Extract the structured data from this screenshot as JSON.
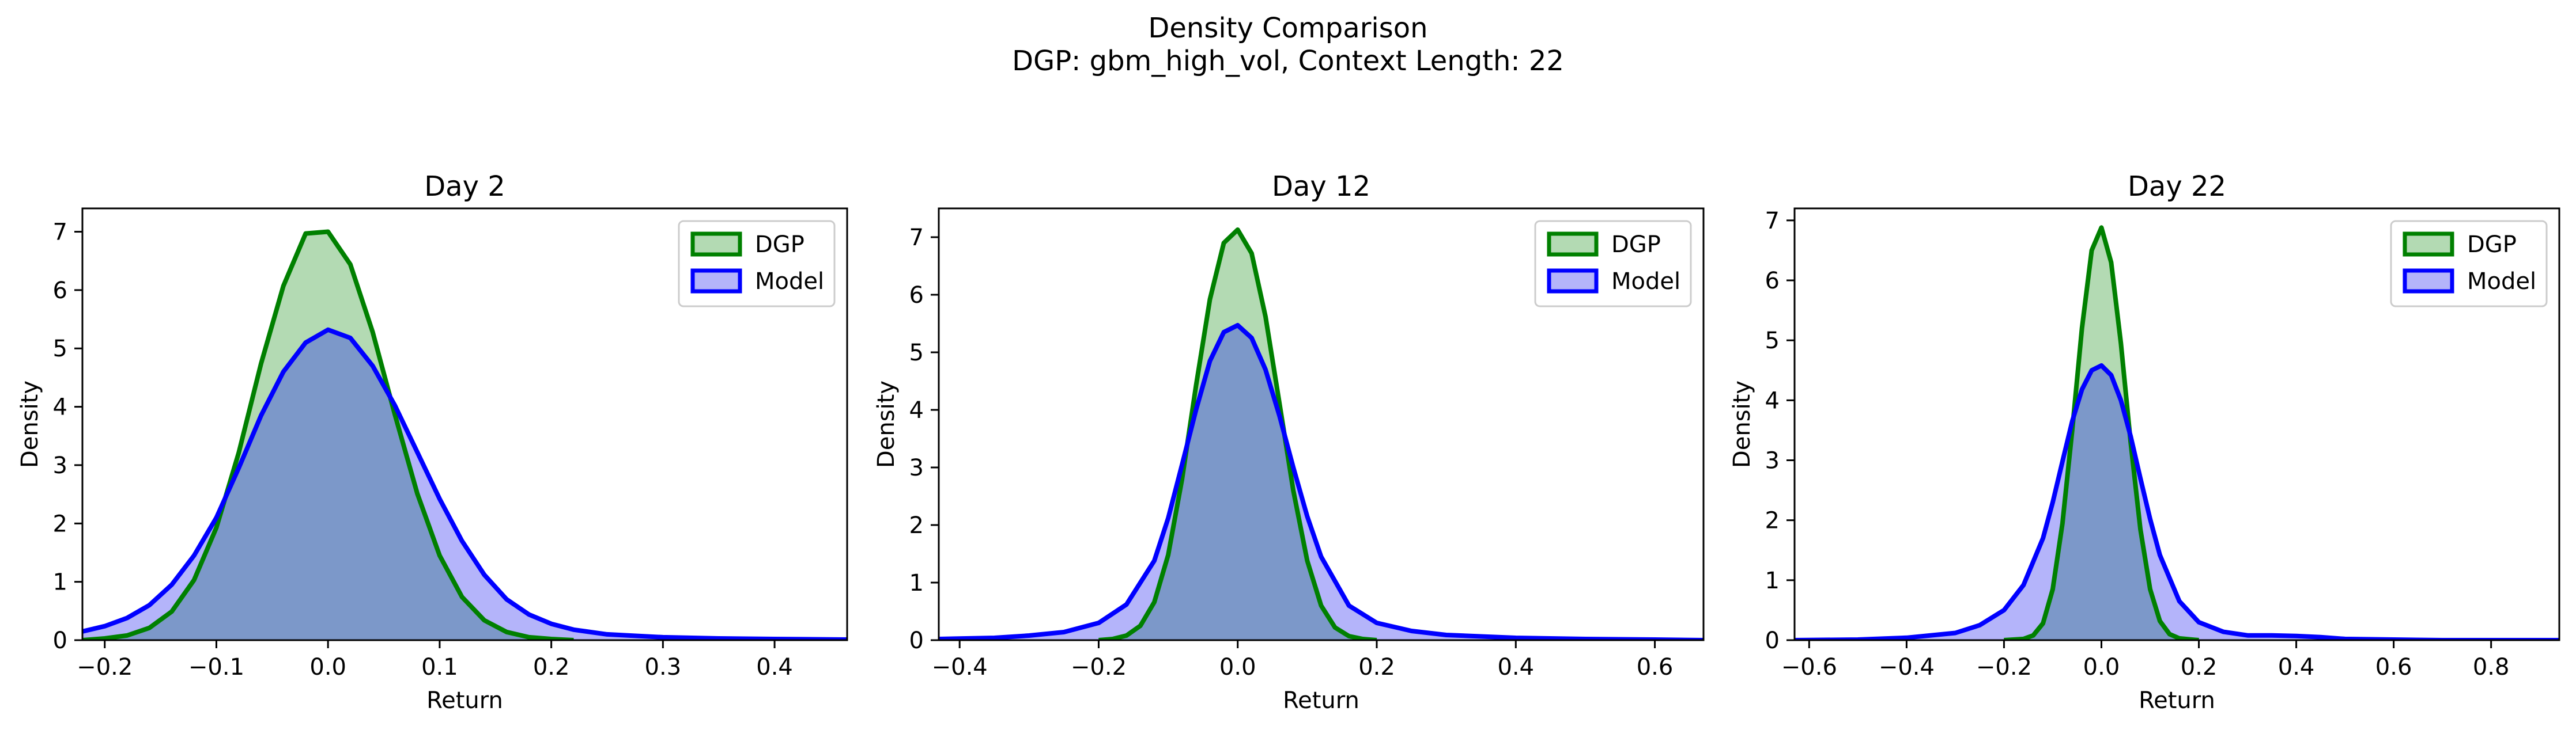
{
  "figure": {
    "title_line1": "Density Comparison",
    "title_line2": "DGP: gbm_high_vol, Context Length: 22"
  },
  "colors": {
    "dgp_line": "#008000",
    "dgp_fill": "#b3dab3",
    "model_line": "#0000ff",
    "model_fill": "#b4b4fa",
    "overlap_fill": "#7c98c9",
    "axis": "#000000"
  },
  "chart_data": [
    {
      "type": "area",
      "title": "Day 2",
      "xlabel": "Return",
      "ylabel": "Density",
      "xlim": [
        -0.22,
        0.465
      ],
      "ylim": [
        0,
        7.4
      ],
      "xticks": [
        -0.2,
        -0.1,
        0.0,
        0.1,
        0.2,
        0.3,
        0.4
      ],
      "xtick_labels": [
        "−0.2",
        "−0.1",
        "0.0",
        "0.1",
        "0.2",
        "0.3",
        "0.4"
      ],
      "yticks": [
        0,
        1,
        2,
        3,
        4,
        5,
        6,
        7
      ],
      "ytick_labels": [
        "0",
        "1",
        "2",
        "3",
        "4",
        "5",
        "6",
        "7"
      ],
      "legend_position": "top-right",
      "grid": false,
      "series": [
        {
          "name": "DGP",
          "x": [
            -0.22,
            -0.2,
            -0.18,
            -0.16,
            -0.14,
            -0.12,
            -0.1,
            -0.08,
            -0.06,
            -0.04,
            -0.02,
            0.0,
            0.02,
            0.04,
            0.06,
            0.08,
            0.1,
            0.12,
            0.14,
            0.16,
            0.18,
            0.2,
            0.22
          ],
          "y": [
            0.0,
            0.03,
            0.08,
            0.21,
            0.49,
            1.03,
            1.93,
            3.21,
            4.74,
            6.07,
            6.97,
            7.0,
            6.44,
            5.28,
            3.86,
            2.51,
            1.45,
            0.74,
            0.34,
            0.14,
            0.05,
            0.02,
            0.0
          ]
        },
        {
          "name": "Model",
          "x": [
            -0.22,
            -0.2,
            -0.18,
            -0.16,
            -0.14,
            -0.12,
            -0.1,
            -0.08,
            -0.06,
            -0.04,
            -0.02,
            0.0,
            0.02,
            0.04,
            0.06,
            0.08,
            0.1,
            0.12,
            0.14,
            0.16,
            0.18,
            0.2,
            0.22,
            0.25,
            0.3,
            0.35,
            0.4,
            0.465
          ],
          "y": [
            0.15,
            0.24,
            0.38,
            0.6,
            0.95,
            1.45,
            2.1,
            2.95,
            3.85,
            4.6,
            5.1,
            5.32,
            5.18,
            4.7,
            4.02,
            3.22,
            2.42,
            1.7,
            1.12,
            0.7,
            0.44,
            0.28,
            0.18,
            0.1,
            0.05,
            0.03,
            0.02,
            0.01
          ]
        }
      ]
    },
    {
      "type": "area",
      "title": "Day 12",
      "xlabel": "Return",
      "ylabel": "Density",
      "xlim": [
        -0.43,
        0.67
      ],
      "ylim": [
        0,
        7.5
      ],
      "xticks": [
        -0.4,
        -0.2,
        0.0,
        0.2,
        0.4,
        0.6
      ],
      "xtick_labels": [
        "−0.4",
        "−0.2",
        "0.0",
        "0.2",
        "0.4",
        "0.6"
      ],
      "yticks": [
        0,
        1,
        2,
        3,
        4,
        5,
        6,
        7
      ],
      "ytick_labels": [
        "0",
        "1",
        "2",
        "3",
        "4",
        "5",
        "6",
        "7"
      ],
      "legend_position": "top-right",
      "grid": false,
      "series": [
        {
          "name": "DGP",
          "x": [
            -0.2,
            -0.18,
            -0.16,
            -0.14,
            -0.12,
            -0.1,
            -0.08,
            -0.06,
            -0.04,
            -0.02,
            0.0,
            0.02,
            0.04,
            0.06,
            0.08,
            0.1,
            0.12,
            0.14,
            0.16,
            0.18,
            0.2
          ],
          "y": [
            0.0,
            0.02,
            0.08,
            0.25,
            0.66,
            1.48,
            2.8,
            4.42,
            5.92,
            6.9,
            7.13,
            6.72,
            5.62,
            4.12,
            2.6,
            1.38,
            0.6,
            0.22,
            0.07,
            0.02,
            0.0
          ]
        },
        {
          "name": "Model",
          "x": [
            -0.43,
            -0.35,
            -0.3,
            -0.25,
            -0.2,
            -0.16,
            -0.12,
            -0.1,
            -0.08,
            -0.06,
            -0.04,
            -0.02,
            0.0,
            0.02,
            0.04,
            0.06,
            0.08,
            0.1,
            0.12,
            0.16,
            0.2,
            0.25,
            0.3,
            0.4,
            0.5,
            0.6,
            0.67
          ],
          "y": [
            0.02,
            0.04,
            0.08,
            0.14,
            0.3,
            0.62,
            1.38,
            2.12,
            3.05,
            4.0,
            4.85,
            5.35,
            5.47,
            5.25,
            4.7,
            3.9,
            3.0,
            2.15,
            1.45,
            0.6,
            0.3,
            0.16,
            0.09,
            0.04,
            0.02,
            0.01,
            0.0
          ]
        }
      ]
    },
    {
      "type": "area",
      "title": "Day 22",
      "xlabel": "Return",
      "ylabel": "Density",
      "xlim": [
        -0.63,
        0.94
      ],
      "ylim": [
        0,
        7.2
      ],
      "xticks": [
        -0.6,
        -0.4,
        -0.2,
        0.0,
        0.2,
        0.4,
        0.6,
        0.8
      ],
      "xtick_labels": [
        "−0.6",
        "−0.4",
        "−0.2",
        "0.0",
        "0.2",
        "0.4",
        "0.6",
        "0.8"
      ],
      "yticks": [
        0,
        1,
        2,
        3,
        4,
        5,
        6,
        7
      ],
      "ytick_labels": [
        "0",
        "1",
        "2",
        "3",
        "4",
        "5",
        "6",
        "7"
      ],
      "legend_position": "top-right",
      "grid": false,
      "series": [
        {
          "name": "DGP",
          "x": [
            -0.2,
            -0.16,
            -0.14,
            -0.12,
            -0.1,
            -0.08,
            -0.06,
            -0.04,
            -0.02,
            0.0,
            0.02,
            0.04,
            0.06,
            0.08,
            0.1,
            0.12,
            0.14,
            0.16,
            0.2
          ],
          "y": [
            0.0,
            0.02,
            0.08,
            0.28,
            0.85,
            1.95,
            3.5,
            5.2,
            6.5,
            6.88,
            6.3,
            4.95,
            3.3,
            1.85,
            0.85,
            0.32,
            0.1,
            0.03,
            0.0
          ]
        },
        {
          "name": "Model",
          "x": [
            -0.63,
            -0.5,
            -0.4,
            -0.3,
            -0.25,
            -0.2,
            -0.16,
            -0.12,
            -0.1,
            -0.08,
            -0.06,
            -0.04,
            -0.02,
            0.0,
            0.02,
            0.04,
            0.06,
            0.08,
            0.1,
            0.12,
            0.16,
            0.2,
            0.25,
            0.3,
            0.35,
            0.4,
            0.45,
            0.5,
            0.6,
            0.7,
            0.8,
            0.94
          ],
          "y": [
            0.0,
            0.01,
            0.04,
            0.12,
            0.25,
            0.5,
            0.92,
            1.7,
            2.3,
            2.98,
            3.65,
            4.18,
            4.5,
            4.58,
            4.42,
            4.0,
            3.4,
            2.7,
            2.02,
            1.42,
            0.65,
            0.3,
            0.14,
            0.08,
            0.08,
            0.07,
            0.05,
            0.02,
            0.01,
            0.0,
            0.0,
            0.0
          ]
        }
      ]
    }
  ]
}
